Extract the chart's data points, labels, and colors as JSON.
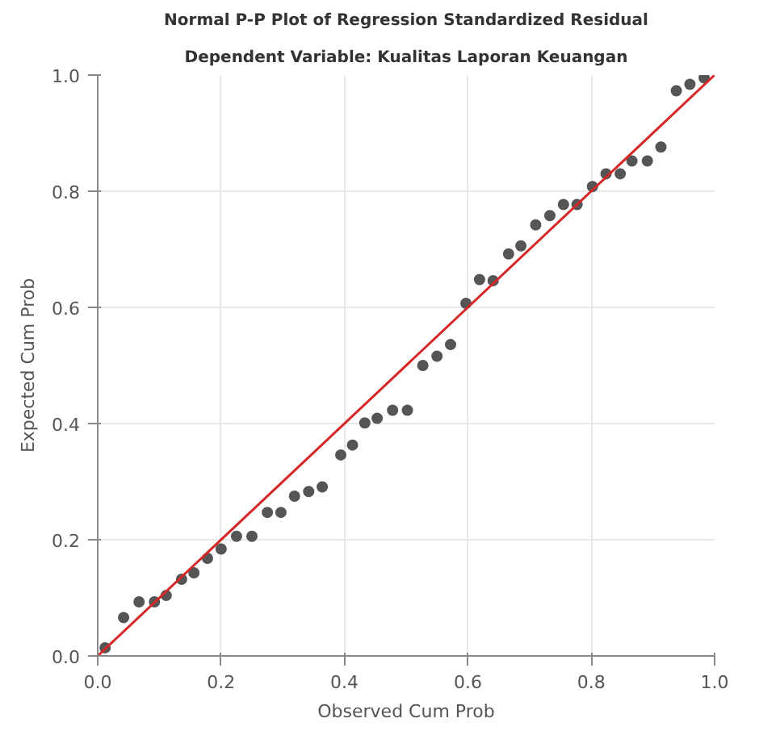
{
  "chart_data": {
    "type": "scatter",
    "title": "Normal P-P Plot of Regression Standardized Residual",
    "subtitle": "Dependent Variable: Kualitas Laporan Keuangan",
    "xlabel": "Observed Cum Prob",
    "ylabel": "Expected Cum Prob",
    "xlim": [
      0,
      1
    ],
    "ylim": [
      0,
      1
    ],
    "xticks": [
      {
        "value": 0,
        "label": "0.0"
      },
      0.2,
      0.4,
      0.6,
      0.8,
      {
        "value": 1,
        "label": "1.0"
      }
    ],
    "yticks": [
      {
        "value": 0,
        "label": "0.0"
      },
      0.2,
      0.4,
      0.6,
      0.8,
      {
        "value": 1,
        "label": "1.0"
      }
    ],
    "grid": true,
    "series": [
      {
        "marker": "circle",
        "color": "#555555",
        "x": [
          0.012,
          0.042,
          0.067,
          0.092,
          0.111,
          0.136,
          0.156,
          0.178,
          0.2,
          0.225,
          0.25,
          0.275,
          0.297,
          0.319,
          0.342,
          0.364,
          0.394,
          0.413,
          0.433,
          0.453,
          0.478,
          0.502,
          0.527,
          0.55,
          0.572,
          0.597,
          0.619,
          0.641,
          0.666,
          0.686,
          0.71,
          0.733,
          0.755,
          0.777,
          0.802,
          0.824,
          0.847,
          0.866,
          0.891,
          0.913,
          0.938,
          0.96,
          0.983
        ],
        "values": [
          0.014,
          0.066,
          0.093,
          0.093,
          0.104,
          0.132,
          0.143,
          0.168,
          0.184,
          0.206,
          0.206,
          0.247,
          0.247,
          0.275,
          0.283,
          0.291,
          0.346,
          0.363,
          0.401,
          0.409,
          0.423,
          0.423,
          0.5,
          0.516,
          0.536,
          0.607,
          0.648,
          0.646,
          0.692,
          0.706,
          0.742,
          0.758,
          0.777,
          0.777,
          0.808,
          0.83,
          0.83,
          0.852,
          0.852,
          0.876,
          0.973,
          0.984,
          0.995
        ]
      },
      {
        "type": "line",
        "color": "#d62728",
        "x": [
          0,
          1
        ],
        "values": [
          0,
          1
        ]
      }
    ]
  }
}
